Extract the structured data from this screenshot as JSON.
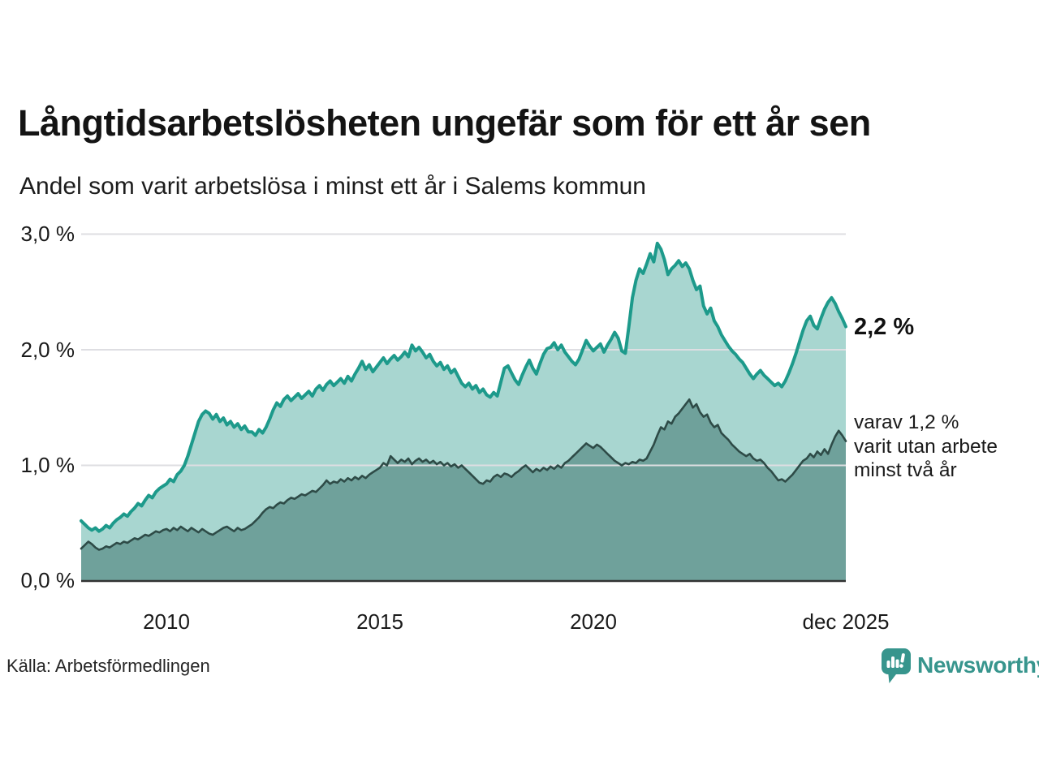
{
  "chart_data": {
    "type": "area",
    "title": "Långtidsarbetslösheten ungefär som för ett år sen",
    "subtitle": "Andel som varit arbetslösa i minst ett år i Salems kommun",
    "x_unit": "month",
    "x_start": "2008-01",
    "x_end": "2025-12",
    "ylim": [
      0,
      3.0
    ],
    "grid": true,
    "grid_color": "#dedee2",
    "axis_color": "#333333",
    "y_ticks": [
      {
        "value": 0,
        "label": "0,0 %"
      },
      {
        "value": 1,
        "label": "1,0 %"
      },
      {
        "value": 2,
        "label": "2,0 %"
      },
      {
        "value": 3,
        "label": "3,0 %"
      }
    ],
    "x_ticks": [
      {
        "t": 2010.0,
        "label": "2010"
      },
      {
        "t": 2015.0,
        "label": "2015"
      },
      {
        "t": 2020.0,
        "label": "2020"
      },
      {
        "t": 2025.9167,
        "label": "dec 2025"
      }
    ],
    "series": [
      {
        "id": "unemployed-min-one-year",
        "color": "#1d9a8b",
        "fill": "#a8d6d0",
        "latest_value": "2,2 %",
        "values": [
          0.52,
          0.49,
          0.46,
          0.44,
          0.46,
          0.43,
          0.45,
          0.48,
          0.46,
          0.5,
          0.53,
          0.55,
          0.58,
          0.56,
          0.6,
          0.63,
          0.67,
          0.65,
          0.7,
          0.74,
          0.72,
          0.77,
          0.8,
          0.82,
          0.84,
          0.88,
          0.86,
          0.92,
          0.95,
          1.0,
          1.08,
          1.18,
          1.28,
          1.38,
          1.44,
          1.47,
          1.45,
          1.4,
          1.44,
          1.38,
          1.41,
          1.35,
          1.38,
          1.33,
          1.36,
          1.31,
          1.34,
          1.29,
          1.29,
          1.26,
          1.31,
          1.28,
          1.33,
          1.4,
          1.48,
          1.54,
          1.51,
          1.57,
          1.6,
          1.56,
          1.59,
          1.62,
          1.58,
          1.61,
          1.64,
          1.6,
          1.66,
          1.69,
          1.65,
          1.7,
          1.73,
          1.69,
          1.72,
          1.75,
          1.71,
          1.77,
          1.73,
          1.79,
          1.84,
          1.9,
          1.83,
          1.87,
          1.81,
          1.85,
          1.89,
          1.93,
          1.88,
          1.92,
          1.95,
          1.91,
          1.94,
          1.98,
          1.94,
          2.04,
          1.99,
          2.02,
          1.98,
          1.93,
          1.96,
          1.9,
          1.86,
          1.89,
          1.83,
          1.86,
          1.8,
          1.83,
          1.77,
          1.71,
          1.68,
          1.71,
          1.66,
          1.69,
          1.63,
          1.66,
          1.61,
          1.59,
          1.63,
          1.6,
          1.72,
          1.84,
          1.86,
          1.8,
          1.74,
          1.7,
          1.78,
          1.85,
          1.91,
          1.84,
          1.79,
          1.88,
          1.96,
          2.01,
          2.02,
          2.06,
          2.0,
          2.04,
          1.98,
          1.94,
          1.9,
          1.87,
          1.92,
          2.0,
          2.08,
          2.03,
          1.99,
          2.02,
          2.05,
          1.98,
          2.04,
          2.09,
          2.15,
          2.1,
          1.99,
          1.97,
          2.2,
          2.45,
          2.6,
          2.7,
          2.66,
          2.74,
          2.83,
          2.76,
          2.92,
          2.87,
          2.78,
          2.65,
          2.7,
          2.73,
          2.77,
          2.72,
          2.75,
          2.7,
          2.6,
          2.52,
          2.55,
          2.38,
          2.31,
          2.36,
          2.25,
          2.2,
          2.13,
          2.08,
          2.03,
          1.99,
          1.96,
          1.92,
          1.89,
          1.84,
          1.79,
          1.75,
          1.79,
          1.82,
          1.78,
          1.75,
          1.72,
          1.69,
          1.71,
          1.68,
          1.73,
          1.8,
          1.88,
          1.97,
          2.07,
          2.17,
          2.25,
          2.29,
          2.21,
          2.18,
          2.27,
          2.35,
          2.41,
          2.45,
          2.4,
          2.33,
          2.27,
          2.2
        ]
      },
      {
        "id": "unemployed-min-two-years",
        "color": "#2e4b47",
        "fill": "#6fa19b",
        "latest_value": "1,2 %",
        "values": [
          0.28,
          0.31,
          0.34,
          0.32,
          0.29,
          0.27,
          0.28,
          0.3,
          0.29,
          0.31,
          0.33,
          0.32,
          0.34,
          0.33,
          0.35,
          0.37,
          0.36,
          0.38,
          0.4,
          0.39,
          0.41,
          0.43,
          0.42,
          0.44,
          0.45,
          0.43,
          0.46,
          0.44,
          0.47,
          0.45,
          0.43,
          0.46,
          0.44,
          0.42,
          0.45,
          0.43,
          0.41,
          0.4,
          0.42,
          0.44,
          0.46,
          0.47,
          0.45,
          0.43,
          0.46,
          0.44,
          0.45,
          0.47,
          0.49,
          0.52,
          0.55,
          0.59,
          0.62,
          0.64,
          0.63,
          0.66,
          0.68,
          0.67,
          0.7,
          0.72,
          0.71,
          0.73,
          0.75,
          0.74,
          0.76,
          0.78,
          0.77,
          0.8,
          0.83,
          0.87,
          0.84,
          0.86,
          0.85,
          0.88,
          0.86,
          0.89,
          0.87,
          0.9,
          0.88,
          0.91,
          0.89,
          0.92,
          0.94,
          0.96,
          0.98,
          1.02,
          1.0,
          1.08,
          1.05,
          1.02,
          1.05,
          1.03,
          1.06,
          1.01,
          1.04,
          1.06,
          1.03,
          1.05,
          1.02,
          1.04,
          1.01,
          1.03,
          1.0,
          1.02,
          0.99,
          1.01,
          0.98,
          1.0,
          0.97,
          0.94,
          0.91,
          0.88,
          0.85,
          0.84,
          0.87,
          0.86,
          0.9,
          0.92,
          0.9,
          0.93,
          0.92,
          0.9,
          0.93,
          0.95,
          0.98,
          1.0,
          0.97,
          0.94,
          0.97,
          0.95,
          0.98,
          0.96,
          0.99,
          0.97,
          1.0,
          0.98,
          1.02,
          1.04,
          1.07,
          1.1,
          1.13,
          1.16,
          1.19,
          1.17,
          1.15,
          1.18,
          1.16,
          1.13,
          1.1,
          1.07,
          1.04,
          1.02,
          1.0,
          1.02,
          1.01,
          1.03,
          1.02,
          1.05,
          1.04,
          1.06,
          1.12,
          1.18,
          1.26,
          1.33,
          1.31,
          1.38,
          1.36,
          1.42,
          1.45,
          1.49,
          1.53,
          1.57,
          1.5,
          1.53,
          1.46,
          1.42,
          1.44,
          1.37,
          1.33,
          1.35,
          1.28,
          1.25,
          1.22,
          1.18,
          1.15,
          1.12,
          1.1,
          1.08,
          1.1,
          1.06,
          1.04,
          1.05,
          1.02,
          0.98,
          0.95,
          0.91,
          0.87,
          0.88,
          0.86,
          0.89,
          0.92,
          0.96,
          1.0,
          1.04,
          1.06,
          1.1,
          1.07,
          1.12,
          1.09,
          1.14,
          1.1,
          1.18,
          1.25,
          1.3,
          1.26,
          1.21
        ]
      }
    ],
    "annotations": {
      "latest_total": "2,2 %",
      "two_year_line1": "varav 1,2 %",
      "two_year_line2": "varit utan arbete",
      "two_year_line3": "minst två år"
    }
  },
  "footer": {
    "source": "Källa: Arbetsförmedlingen",
    "brand": "Newsworthy"
  }
}
